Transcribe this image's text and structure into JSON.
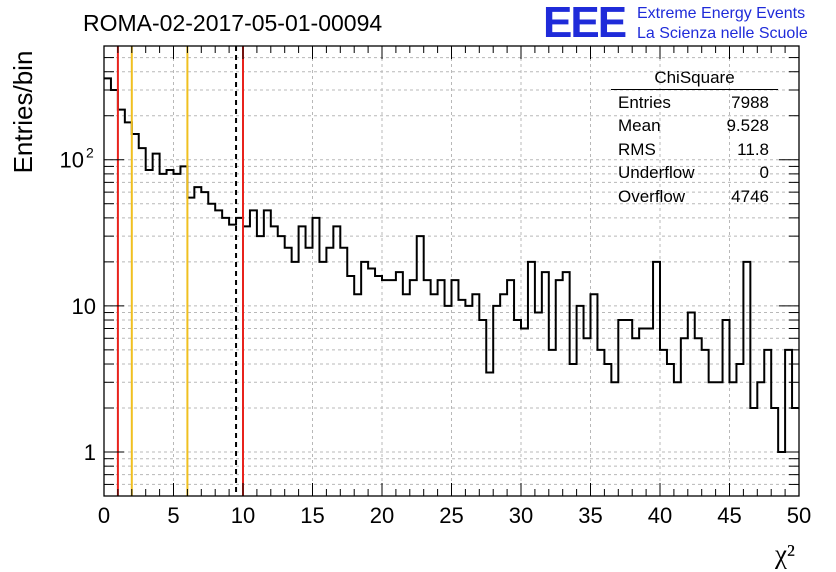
{
  "header": {
    "run_title": "ROMA-02-2017-05-01-00094",
    "logo_text": "EEE",
    "brand_line1": "Extreme Energy Events",
    "brand_line2": "La Scienza nelle Scuole"
  },
  "stats": {
    "title": "ChiSquare",
    "rows": [
      {
        "label": "Entries",
        "value": "7988"
      },
      {
        "label": "Mean",
        "value": "9.528"
      },
      {
        "label": "RMS",
        "value": "11.8"
      },
      {
        "label": "Underflow",
        "value": "0"
      },
      {
        "label": "Overflow",
        "value": "4746"
      }
    ]
  },
  "colors": {
    "logo_blue": "#1f2bd9",
    "red_line": "#e8231c",
    "yellow_line": "#f0c020",
    "grid": "#b8b8b8"
  },
  "chart_data": {
    "type": "histogram",
    "ylabel": "Entries/bin",
    "xlabel": "χ²",
    "xlim": [
      0,
      50
    ],
    "ylim": [
      0.5,
      600
    ],
    "yscale": "log",
    "grid": true,
    "x_ticks": [
      "0",
      "5",
      "10",
      "15",
      "20",
      "25",
      "30",
      "35",
      "40",
      "45",
      "50"
    ],
    "y_ticks": [
      {
        "value": 1,
        "label": "1"
      },
      {
        "value": 10,
        "label": "10"
      },
      {
        "value": 100,
        "label": "10",
        "sup": "2"
      }
    ],
    "bin_width": 0.5,
    "bin_contents": [
      360,
      300,
      220,
      180,
      150,
      120,
      85,
      110,
      80,
      85,
      80,
      90,
      55,
      65,
      60,
      50,
      45,
      40,
      36,
      40,
      35,
      45,
      30,
      45,
      35,
      30,
      25,
      20,
      35,
      25,
      40,
      20,
      25,
      35,
      25,
      16,
      12,
      20,
      18,
      16,
      15,
      15,
      17,
      12,
      15,
      30,
      15,
      12,
      15,
      10,
      15,
      11,
      10,
      12,
      8,
      3.5,
      10,
      12,
      15,
      8,
      7,
      20,
      9,
      17,
      5,
      15,
      17,
      4,
      10,
      6,
      12,
      5,
      4,
      3,
      8,
      8,
      6,
      7,
      7,
      20,
      5,
      4,
      3,
      6,
      9,
      6,
      5,
      3,
      3,
      8,
      3,
      4,
      20,
      2,
      3,
      5,
      2,
      1,
      5,
      2
    ],
    "vertical_lines": [
      {
        "x": 1.0,
        "color": "red",
        "style": "solid"
      },
      {
        "x": 2.0,
        "color": "yellow",
        "style": "solid"
      },
      {
        "x": 6.0,
        "color": "yellow",
        "style": "solid"
      },
      {
        "x": 9.5,
        "color": "black",
        "style": "dashed"
      },
      {
        "x": 10.0,
        "color": "red",
        "style": "solid"
      }
    ]
  }
}
